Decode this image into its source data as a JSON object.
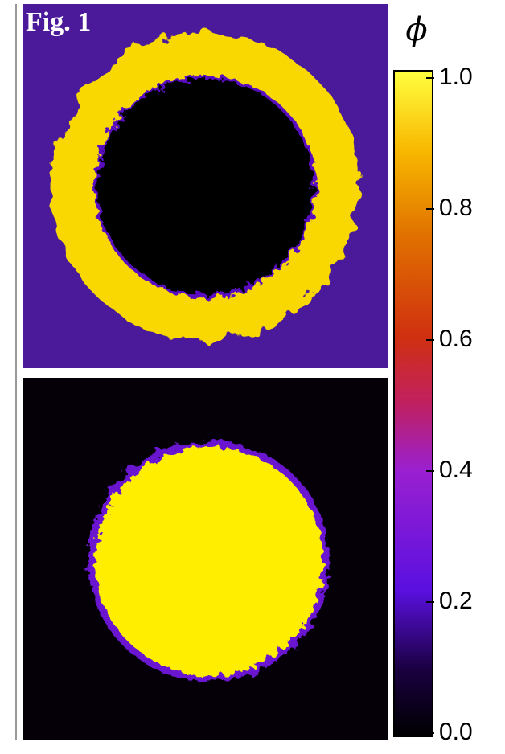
{
  "figure": {
    "label": "Fig. 1"
  },
  "colorbar": {
    "label": "ϕ",
    "ticks": [
      {
        "value": 0,
        "label": "0.0"
      },
      {
        "value": 0.2,
        "label": "0.2"
      },
      {
        "value": 0.4,
        "label": "0.4"
      },
      {
        "value": 0.6,
        "label": "0.6"
      },
      {
        "value": 0.8,
        "label": "0.8"
      },
      {
        "value": 1,
        "label": "1.0"
      }
    ]
  }
}
